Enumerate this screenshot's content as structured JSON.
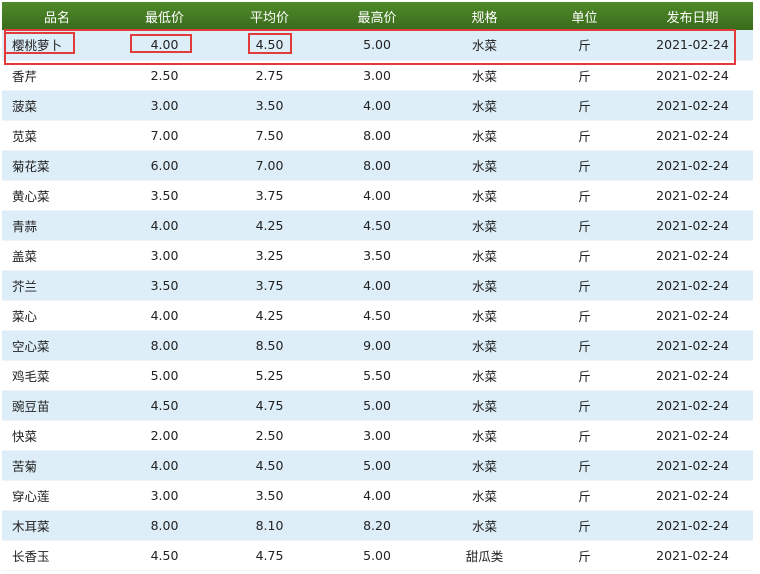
{
  "table": {
    "headers": [
      "品名",
      "最低价",
      "平均价",
      "最高价",
      "规格",
      "单位",
      "发布日期"
    ],
    "rows": [
      [
        "樱桃萝卜",
        "4.00",
        "4.50",
        "5.00",
        "水菜",
        "斤",
        "2021-02-24"
      ],
      [
        "香芹",
        "2.50",
        "2.75",
        "3.00",
        "水菜",
        "斤",
        "2021-02-24"
      ],
      [
        "菠菜",
        "3.00",
        "3.50",
        "4.00",
        "水菜",
        "斤",
        "2021-02-24"
      ],
      [
        "苋菜",
        "7.00",
        "7.50",
        "8.00",
        "水菜",
        "斤",
        "2021-02-24"
      ],
      [
        "菊花菜",
        "6.00",
        "7.00",
        "8.00",
        "水菜",
        "斤",
        "2021-02-24"
      ],
      [
        "黄心菜",
        "3.50",
        "3.75",
        "4.00",
        "水菜",
        "斤",
        "2021-02-24"
      ],
      [
        "青蒜",
        "4.00",
        "4.25",
        "4.50",
        "水菜",
        "斤",
        "2021-02-24"
      ],
      [
        "盖菜",
        "3.00",
        "3.25",
        "3.50",
        "水菜",
        "斤",
        "2021-02-24"
      ],
      [
        "芥兰",
        "3.50",
        "3.75",
        "4.00",
        "水菜",
        "斤",
        "2021-02-24"
      ],
      [
        "菜心",
        "4.00",
        "4.25",
        "4.50",
        "水菜",
        "斤",
        "2021-02-24"
      ],
      [
        "空心菜",
        "8.00",
        "8.50",
        "9.00",
        "水菜",
        "斤",
        "2021-02-24"
      ],
      [
        "鸡毛菜",
        "5.00",
        "5.25",
        "5.50",
        "水菜",
        "斤",
        "2021-02-24"
      ],
      [
        "豌豆苗",
        "4.50",
        "4.75",
        "5.00",
        "水菜",
        "斤",
        "2021-02-24"
      ],
      [
        "快菜",
        "2.00",
        "2.50",
        "3.00",
        "水菜",
        "斤",
        "2021-02-24"
      ],
      [
        "苦菊",
        "4.00",
        "4.50",
        "5.00",
        "水菜",
        "斤",
        "2021-02-24"
      ],
      [
        "穿心莲",
        "3.00",
        "3.50",
        "4.00",
        "水菜",
        "斤",
        "2021-02-24"
      ],
      [
        "木耳菜",
        "8.00",
        "8.10",
        "8.20",
        "水菜",
        "斤",
        "2021-02-24"
      ],
      [
        "长香玉",
        "4.50",
        "4.75",
        "5.00",
        "甜瓜类",
        "斤",
        "2021-02-24"
      ]
    ]
  },
  "colors": {
    "header_green": "#3f7521",
    "row_stripe": "#ddeef8",
    "highlight_red": "#e23b3b"
  }
}
